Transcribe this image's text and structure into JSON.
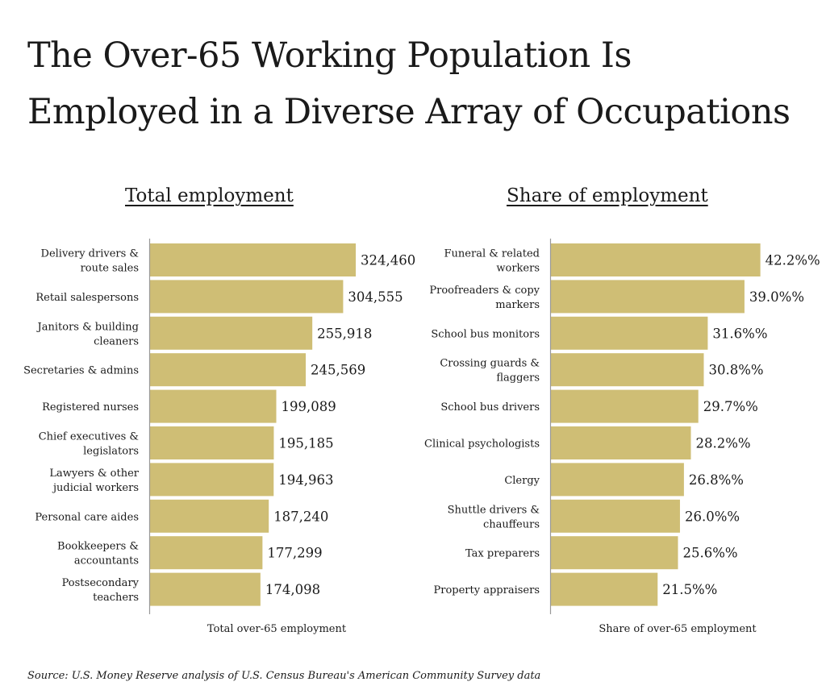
{
  "header": {
    "title": "The Over-65 Working Population Is Employed in a Diverse Array of Occupations"
  },
  "colors": {
    "bar": "#cfbe75",
    "axis": "#999999",
    "text": "#1a1a1a"
  },
  "chart_data": [
    {
      "type": "bar",
      "orientation": "horizontal",
      "title": "Total employment",
      "xlabel": "Total over-65 employment",
      "ylabel": "",
      "grid": false,
      "categories": [
        [
          "Delivery drivers &",
          "route sales"
        ],
        [
          "Retail salespersons"
        ],
        [
          "Janitors & building",
          "cleaners"
        ],
        [
          "Secretaries & admins"
        ],
        [
          "Registered nurses"
        ],
        [
          "Chief executives &",
          "legislators"
        ],
        [
          "Lawyers & other",
          "judicial workers"
        ],
        [
          "Personal care aides"
        ],
        [
          "Bookkeepers &",
          "accountants"
        ],
        [
          "Postsecondary",
          "teachers"
        ]
      ],
      "values": [
        324460,
        304555,
        255918,
        245569,
        199089,
        195185,
        194963,
        187240,
        177299,
        174098
      ],
      "value_labels": [
        "324,460",
        "304,555",
        "255,918",
        "245,569",
        "199,089",
        "195,185",
        "194,963",
        "187,240",
        "177,299",
        "174,098"
      ],
      "xlim": [
        0,
        360000
      ]
    },
    {
      "type": "bar",
      "orientation": "horizontal",
      "title": "Share of employment",
      "xlabel": "Share of over-65 employment",
      "ylabel": "",
      "grid": false,
      "categories": [
        [
          "Funeral & related",
          "workers"
        ],
        [
          "Proofreaders & copy",
          "markers"
        ],
        [
          "School bus monitors"
        ],
        [
          "Crossing guards &",
          "flaggers"
        ],
        [
          "School bus drivers"
        ],
        [
          "Clinical psychologists"
        ],
        [
          "Clergy"
        ],
        [
          "Shuttle drivers &",
          "chauffeurs"
        ],
        [
          "Tax preparers"
        ],
        [
          "Property appraisers"
        ]
      ],
      "values": [
        42.2,
        39.0,
        31.6,
        30.8,
        29.7,
        28.2,
        26.8,
        26.0,
        25.6,
        21.5
      ],
      "value_labels": [
        "42.2%%",
        "39.0%%",
        "31.6%%",
        "30.8%%",
        "29.7%%",
        "28.2%%",
        "26.8%%",
        "26.0%%",
        "25.6%%",
        "21.5%%"
      ],
      "xlim": [
        0,
        46.0
      ]
    }
  ],
  "footer": {
    "source": "Source: U.S. Money Reserve analysis of U.S. Census Bureau's American Community Survey data"
  }
}
